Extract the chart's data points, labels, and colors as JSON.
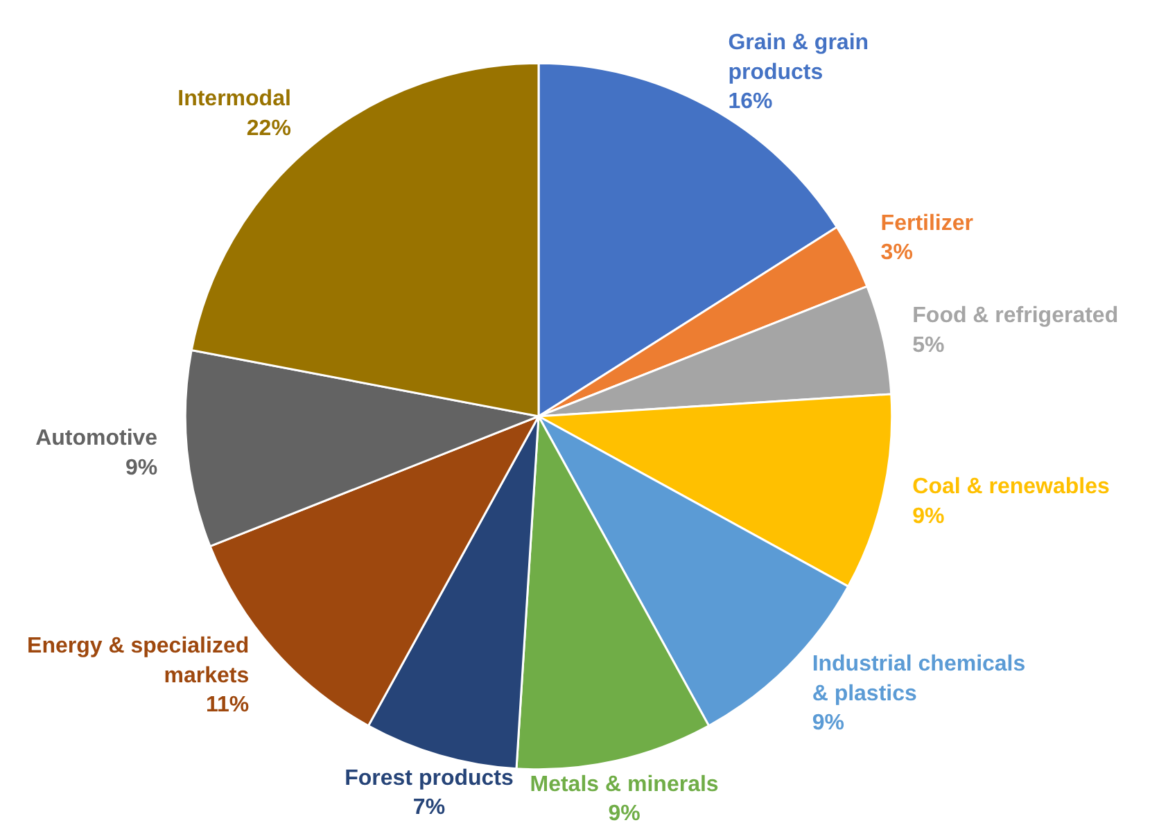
{
  "chart_data": {
    "type": "pie",
    "categories": [
      "Grain & grain products",
      "Fertilizer",
      "Food & refrigerated",
      "Coal & renewables",
      "Industrial chemicals & plastics",
      "Metals & minerals",
      "Forest products",
      "Energy & specialized markets",
      "Automotive",
      "Intermodal"
    ],
    "values": [
      16,
      3,
      5,
      9,
      9,
      9,
      7,
      11,
      9,
      22
    ],
    "colors": [
      "#4472c4",
      "#ed7d31",
      "#a5a5a5",
      "#ffc000",
      "#5b9bd5",
      "#70ad47",
      "#264478",
      "#9e480e",
      "#636363",
      "#997300"
    ],
    "value_labels": [
      "16%",
      "3%",
      "5%",
      "9%",
      "9%",
      "9%",
      "7%",
      "11%",
      "9%",
      "22%"
    ]
  }
}
